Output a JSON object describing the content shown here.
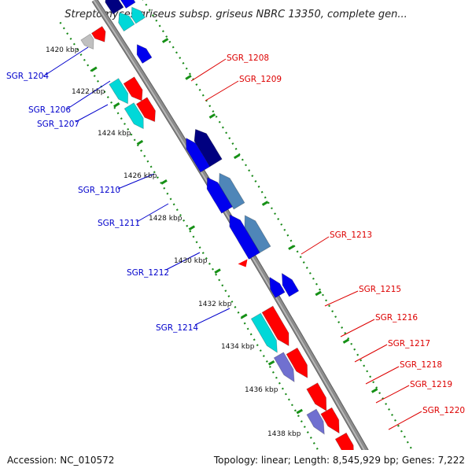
{
  "title": "Streptomyces griseus subsp. griseus NBRC 13350, complete gen...",
  "footer": {
    "accession": "Accession: NC_010572",
    "summary": "Topology: linear; Length: 8,545,929 bp; Genes: 7,222"
  },
  "kbp_labels": [
    "1420 kbp",
    "1422 kbp",
    "1424 kbp",
    "1426 kbp",
    "1428 kbp",
    "1430 kbp",
    "1432 kbp",
    "1434 kbp",
    "1436 kbp",
    "1438 kbp"
  ],
  "colors": {
    "backbone": "#8c8c8c",
    "track_dots": "#1a8a1a",
    "reverse_label": "#0000cc",
    "forward_label": "#dd0000",
    "red": "#ff0000",
    "cyan": "#00d8d8",
    "blue": "#0000ee",
    "navy": "#000080",
    "steel": "#4f86b8",
    "purple": "#7070d0",
    "gray": "#c0c0c0"
  },
  "reverse_genes": [
    "SGR_1204",
    "SGR_1206",
    "SGR_1207",
    "SGR_1210",
    "SGR_1211",
    "SGR_1212",
    "SGR_1214"
  ],
  "forward_genes": [
    "SGR_1208",
    "SGR_1209",
    "SGR_1213",
    "SGR_1215",
    "SGR_1216",
    "SGR_1217",
    "SGR_1218",
    "SGR_1219",
    "SGR_1220"
  ]
}
